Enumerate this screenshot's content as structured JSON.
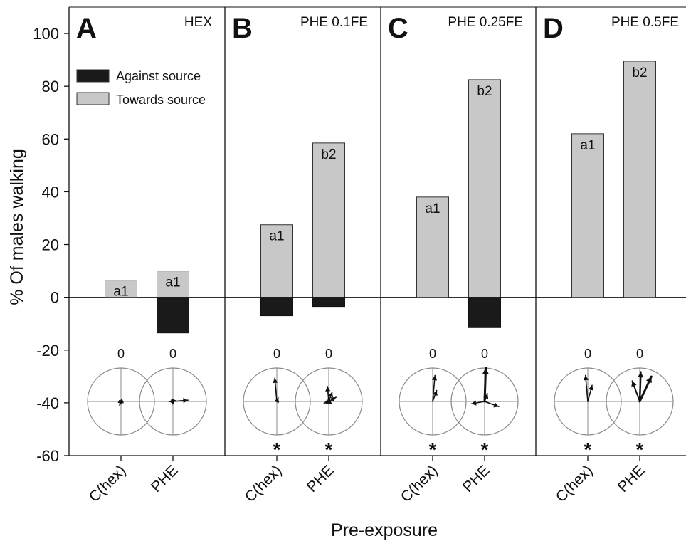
{
  "chart_data": {
    "type": "bar",
    "ylabel": "% Of males walking",
    "xlabel": "Pre-exposure",
    "ylim": [
      -60,
      110
    ],
    "yticks": [
      -60,
      -40,
      -20,
      0,
      20,
      40,
      60,
      80,
      100
    ],
    "legend": {
      "placement": "top-left",
      "entries": [
        {
          "label": "Against source",
          "color": "#1a1a1a"
        },
        {
          "label": "Towards source",
          "color": "#c8c8c8"
        }
      ]
    },
    "colors": {
      "towards": "#c8c8c8",
      "against": "#1a1a1a",
      "circle": "#8a8a8a"
    },
    "circle_top_label": "0",
    "significance_marker": "*",
    "panels": [
      {
        "letter": "A",
        "title": "HEX",
        "groups": [
          {
            "label": "C(hex)",
            "towards": 6.5,
            "against": 0,
            "letter_label": "a1",
            "significant": false,
            "arrows": [
              {
                "angle": 200,
                "length": 0.12
              },
              {
                "angle": 250,
                "length": 0.08
              }
            ]
          },
          {
            "label": "PHE",
            "towards": 10,
            "against": -13.5,
            "letter_label": "a1",
            "significant": false,
            "arrows": [
              {
                "angle": 85,
                "length": 0.45
              },
              {
                "angle": 270,
                "length": 0.12
              },
              {
                "angle": 195,
                "length": 0.08
              }
            ]
          }
        ]
      },
      {
        "letter": "B",
        "title": "PHE 0.1FE",
        "groups": [
          {
            "label": "C(hex)",
            "towards": 27.5,
            "against": -7,
            "letter_label": "a1",
            "significant": true,
            "arrows": [
              {
                "angle": 355,
                "length": 0.7
              },
              {
                "angle": 20,
                "length": 0.12
              }
            ]
          },
          {
            "label": "PHE",
            "towards": 58.5,
            "against": -3.5,
            "letter_label": "b2",
            "significant": true,
            "arrows": [
              {
                "angle": 355,
                "length": 0.45
              },
              {
                "angle": 20,
                "length": 0.3
              },
              {
                "angle": 60,
                "length": 0.25
              },
              {
                "angle": 250,
                "length": 0.15
              },
              {
                "angle": 130,
                "length": 0.12
              }
            ]
          }
        ]
      },
      {
        "letter": "C",
        "title": "PHE 0.25FE",
        "groups": [
          {
            "label": "C(hex)",
            "towards": 38,
            "against": 0,
            "letter_label": "a1",
            "significant": true,
            "arrows": [
              {
                "angle": 5,
                "length": 0.78
              },
              {
                "angle": 20,
                "length": 0.35
              }
            ]
          },
          {
            "label": "PHE",
            "towards": 82.5,
            "against": -11.5,
            "letter_label": "b2",
            "significant": true,
            "arrows": [
              {
                "angle": 2,
                "length": 1.0,
                "width": 3
              },
              {
                "angle": 110,
                "length": 0.45
              },
              {
                "angle": 260,
                "length": 0.4
              },
              {
                "angle": 20,
                "length": 0.25
              }
            ]
          }
        ]
      },
      {
        "letter": "D",
        "title": "PHE 0.5FE",
        "groups": [
          {
            "label": "C(hex)",
            "towards": 62,
            "against": 0,
            "letter_label": "a1",
            "significant": true,
            "arrows": [
              {
                "angle": 355,
                "length": 0.78
              },
              {
                "angle": 15,
                "length": 0.5
              }
            ]
          },
          {
            "label": "PHE",
            "towards": 89.5,
            "against": 0,
            "letter_label": "b2",
            "significant": true,
            "arrows": [
              {
                "angle": 25,
                "length": 0.82,
                "width": 3
              },
              {
                "angle": 2,
                "length": 0.88,
                "width": 2.5
              },
              {
                "angle": 340,
                "length": 0.65,
                "width": 2
              }
            ]
          }
        ]
      }
    ]
  }
}
